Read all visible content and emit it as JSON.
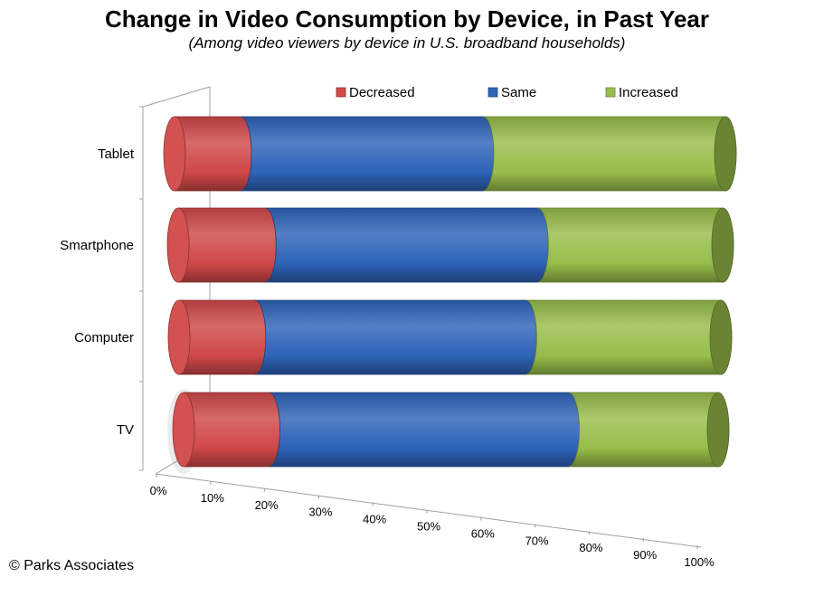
{
  "chart_data": {
    "type": "bar",
    "orientation": "horizontal",
    "stacked": "100%",
    "style": "3d-cylinder",
    "title": "Change in Video Consumption by Device, in Past Year",
    "subtitle": "(Among video viewers by device in U.S. broadband households)",
    "categories": [
      "Tablet",
      "Smartphone",
      "Computer",
      "TV"
    ],
    "series": [
      {
        "name": "Decreased",
        "color": "#d04848",
        "values": [
          12,
          16,
          14,
          16
        ]
      },
      {
        "name": "Same",
        "color": "#2e63b8",
        "values": [
          44,
          50,
          50,
          56
        ]
      },
      {
        "name": "Increased",
        "color": "#97bd4a",
        "values": [
          44,
          34,
          36,
          28
        ]
      }
    ],
    "x_ticks": [
      "0%",
      "10%",
      "20%",
      "30%",
      "40%",
      "50%",
      "60%",
      "70%",
      "80%",
      "90%",
      "100%"
    ],
    "xlim": [
      0,
      100
    ],
    "grid": false,
    "legend_position": "top"
  },
  "footer": {
    "copyright": "© Parks Associates"
  }
}
